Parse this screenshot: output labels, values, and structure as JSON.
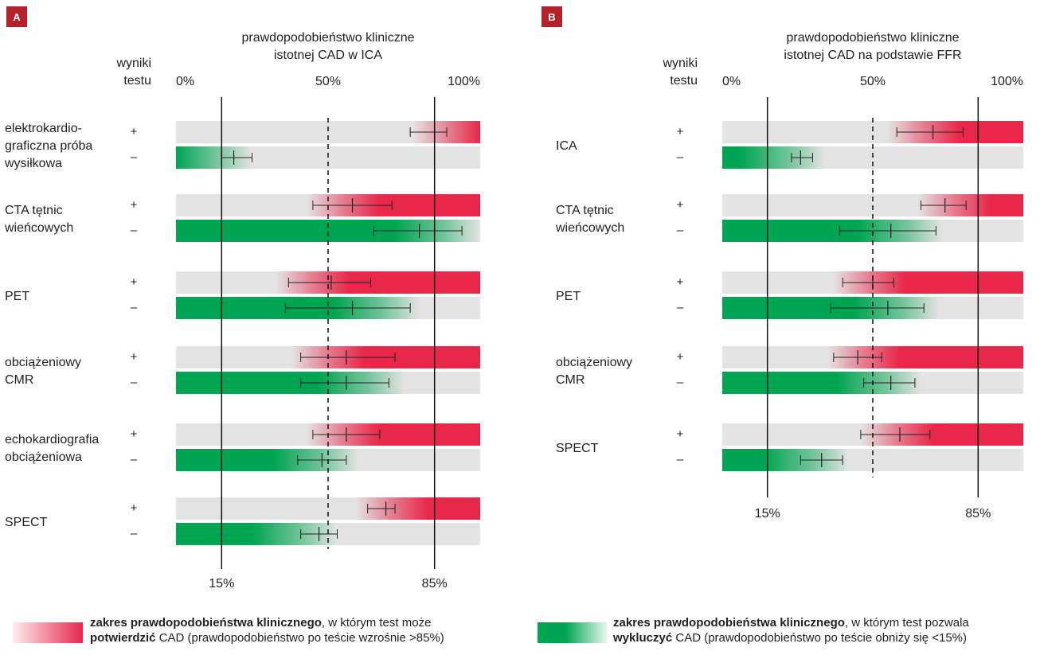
{
  "colors": {
    "red": "#e8274a",
    "green": "#00a551",
    "bar_bg": "#e3e3e3",
    "badge": "#b5202a"
  },
  "chart_data": [
    {
      "type": "bar",
      "panel": "A",
      "title": "prawdopodobieństwo kliniczne istotnej CAD w ICA",
      "title_lines": [
        "prawdopodobieństwo kliniczne",
        "istotnej CAD w ICA"
      ],
      "results_header": [
        "wyniki",
        "testu"
      ],
      "xlim": [
        0,
        100
      ],
      "top_ticks": [
        "0%",
        "50%",
        "100%"
      ],
      "threshold_labels": [
        "15%",
        "85%"
      ],
      "thresholds": [
        15,
        85
      ],
      "midline": 50,
      "tests": [
        {
          "label": [
            "elektrokardio-",
            "graficzna próba",
            "wysiłkowa"
          ],
          "pos": {
            "sign": "+",
            "gradient_start": 78,
            "estimate": 85,
            "ci": [
              77,
              89
            ]
          },
          "neg": {
            "sign": "–",
            "gradient_end": 25,
            "estimate": 19,
            "ci": [
              15,
              25
            ]
          }
        },
        {
          "label": [
            "CTA tętnic",
            "wieńcowych"
          ],
          "pos": {
            "sign": "+",
            "gradient_start": 43,
            "estimate": 58,
            "ci": [
              45,
              71
            ]
          },
          "neg": {
            "sign": "–",
            "gradient_end": 100,
            "estimate": 80,
            "ci": [
              65,
              94
            ]
          }
        },
        {
          "label": [
            "PET"
          ],
          "pos": {
            "sign": "+",
            "gradient_start": 33,
            "estimate": 51,
            "ci": [
              37,
              64
            ]
          },
          "neg": {
            "sign": "–",
            "gradient_end": 80,
            "estimate": 58,
            "ci": [
              36,
              77
            ]
          }
        },
        {
          "label": [
            "obciążeniowy",
            "CMR"
          ],
          "pos": {
            "sign": "+",
            "gradient_start": 38,
            "estimate": 56,
            "ci": [
              41,
              72
            ]
          },
          "neg": {
            "sign": "–",
            "gradient_end": 75,
            "estimate": 56,
            "ci": [
              41,
              70
            ]
          }
        },
        {
          "label": [
            "echokardiografia",
            "obciążeniowa"
          ],
          "pos": {
            "sign": "+",
            "gradient_start": 43,
            "estimate": 56,
            "ci": [
              45,
              67
            ]
          },
          "neg": {
            "sign": "–",
            "gradient_end": 60,
            "estimate": 48,
            "ci": [
              40,
              56
            ]
          }
        },
        {
          "label": [
            "SPECT"
          ],
          "pos": {
            "sign": "+",
            "gradient_start": 59,
            "estimate": 69,
            "ci": [
              63,
              72
            ]
          },
          "neg": {
            "sign": "–",
            "gradient_end": 53,
            "estimate": 47,
            "ci": [
              41,
              53
            ]
          }
        }
      ]
    },
    {
      "type": "bar",
      "panel": "B",
      "title": "prawdopodobieństwo kliniczne istotnej CAD na podstawie FFR",
      "title_lines": [
        "prawdopodobieństwo kliniczne",
        "istotnej CAD na podstawie FFR"
      ],
      "results_header": [
        "wyniki",
        "testu"
      ],
      "xlim": [
        0,
        100
      ],
      "top_ticks": [
        "0%",
        "50%",
        "100%"
      ],
      "threshold_labels": [
        "15%",
        "85%"
      ],
      "thresholds": [
        15,
        85
      ],
      "midline": 50,
      "tests": [
        {
          "label": [
            "ICA"
          ],
          "pos": {
            "sign": "+",
            "gradient_start": 55,
            "estimate": 70,
            "ci": [
              58,
              80
            ]
          },
          "neg": {
            "sign": "–",
            "gradient_end": 34,
            "estimate": 26,
            "ci": [
              23,
              30
            ]
          }
        },
        {
          "label": [
            "CTA tętnic",
            "wieńcowych"
          ],
          "pos": {
            "sign": "+",
            "gradient_start": 65,
            "estimate": 74,
            "ci": [
              66,
              81
            ]
          },
          "neg": {
            "sign": "–",
            "gradient_end": 73,
            "estimate": 56,
            "ci": [
              39,
              71
            ]
          }
        },
        {
          "label": [
            "PET"
          ],
          "pos": {
            "sign": "+",
            "gradient_start": 37,
            "estimate": 50,
            "ci": [
              40,
              57
            ]
          },
          "neg": {
            "sign": "–",
            "gradient_end": 72,
            "estimate": 55,
            "ci": [
              36,
              67
            ]
          }
        },
        {
          "label": [
            "obciążeniowy",
            "CMR"
          ],
          "pos": {
            "sign": "+",
            "gradient_start": 35,
            "estimate": 45,
            "ci": [
              37,
              53
            ]
          },
          "neg": {
            "sign": "–",
            "gradient_end": 66,
            "estimate": 56,
            "ci": [
              47,
              64
            ]
          }
        },
        {
          "label": [
            "SPECT"
          ],
          "pos": {
            "sign": "+",
            "gradient_start": 46,
            "estimate": 59,
            "ci": [
              46,
              69
            ]
          },
          "neg": {
            "sign": "–",
            "gradient_end": 42,
            "estimate": 33,
            "ci": [
              26,
              40
            ]
          }
        }
      ]
    }
  ],
  "legend": {
    "red": {
      "bold1": "zakres prawdopodobieństwa klinicznego",
      "text1": ", w którym test może",
      "bold2": "potwierdzić",
      "text2": " CAD (prawdopodobieństwo po teście wzrośnie >85%)"
    },
    "green": {
      "bold1": "zakres prawdopodobieństwa klinicznego",
      "text1": ", w którym test pozwala",
      "bold2": "wykluczyć",
      "text2": " CAD (prawdopodobieństwo po teście obniży się <15%)"
    }
  }
}
